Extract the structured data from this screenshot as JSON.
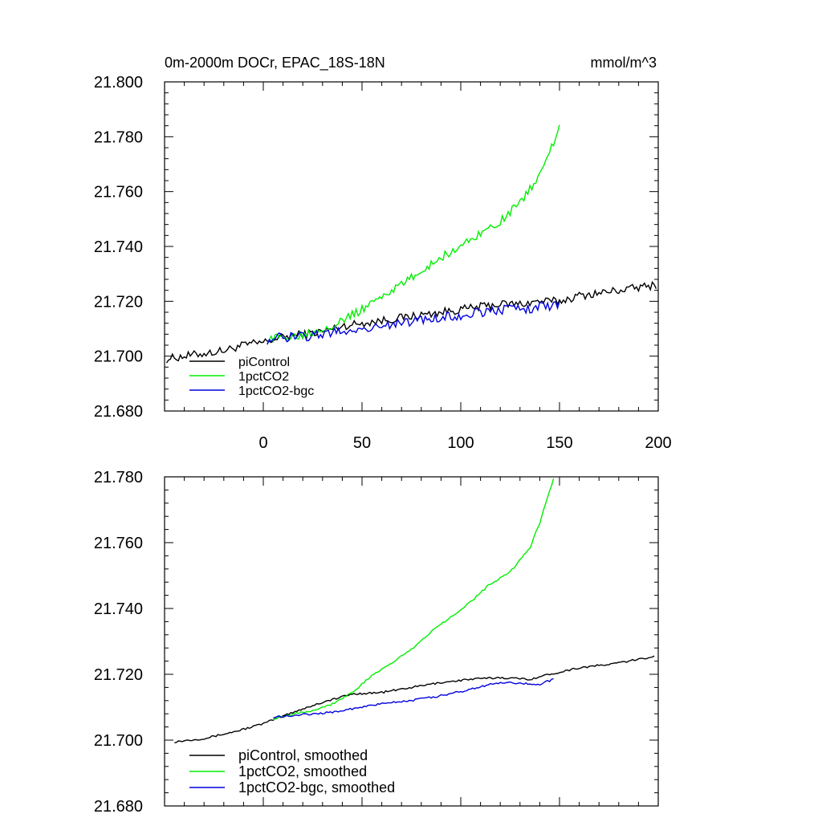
{
  "chart_data": [
    {
      "type": "line",
      "title": "0m-2000m DOCr, EPAC_18S-18N",
      "units": "mmol/m^3",
      "xlim": [
        -50,
        200
      ],
      "ylim": [
        21.68,
        21.8
      ],
      "xticks": [
        0,
        50,
        100,
        150,
        200
      ],
      "xtick_labels": [
        "0",
        "50",
        "100",
        "150",
        "200"
      ],
      "yticks": [
        21.68,
        21.7,
        21.72,
        21.74,
        21.76,
        21.78,
        21.8
      ],
      "ytick_labels": [
        "21.680",
        "21.700",
        "21.720",
        "21.740",
        "21.760",
        "21.780",
        "21.800"
      ],
      "legend_position": "bottom-left",
      "series": [
        {
          "name": "piControl",
          "color": "#000000",
          "x": [
            -49,
            -40,
            -30,
            -20,
            -10,
            0,
            10,
            20,
            30,
            40,
            50,
            60,
            70,
            80,
            90,
            100,
            110,
            120,
            130,
            140,
            150,
            160,
            170,
            180,
            190,
            199
          ],
          "y": [
            21.699,
            21.7,
            21.701,
            21.702,
            21.704,
            21.705,
            21.707,
            21.708,
            21.709,
            21.711,
            21.712,
            21.713,
            21.714,
            21.715,
            21.716,
            21.717,
            21.718,
            21.719,
            21.719,
            21.72,
            21.72,
            21.722,
            21.723,
            21.724,
            21.725,
            21.726
          ],
          "noise": 0.0015
        },
        {
          "name": "1pctCO2",
          "color": "#00ee00",
          "x": [
            2,
            10,
            20,
            30,
            40,
            50,
            60,
            70,
            80,
            90,
            100,
            110,
            120,
            130,
            140,
            150
          ],
          "y": [
            21.706,
            21.707,
            21.708,
            21.71,
            21.713,
            21.717,
            21.722,
            21.726,
            21.731,
            21.736,
            21.74,
            21.745,
            21.749,
            21.756,
            21.766,
            21.783
          ],
          "noise": 0.0015
        },
        {
          "name": "1pctCO2-bgc",
          "color": "#0000dd",
          "x": [
            2,
            10,
            20,
            30,
            40,
            50,
            60,
            70,
            80,
            90,
            100,
            110,
            120,
            130,
            140,
            150
          ],
          "y": [
            21.706,
            21.707,
            21.707,
            21.708,
            21.709,
            21.71,
            21.711,
            21.712,
            21.713,
            21.714,
            21.715,
            21.716,
            21.717,
            21.717,
            21.718,
            21.719
          ],
          "noise": 0.0018
        }
      ]
    },
    {
      "type": "line",
      "xlim": [
        -50,
        200
      ],
      "ylim": [
        21.68,
        21.78
      ],
      "xticks": [
        0,
        50,
        100,
        150,
        200
      ],
      "yticks": [
        21.68,
        21.7,
        21.72,
        21.74,
        21.76,
        21.78
      ],
      "ytick_labels": [
        "21.680",
        "21.700",
        "21.720",
        "21.740",
        "21.760",
        "21.780"
      ],
      "legend_position": "bottom-left",
      "series": [
        {
          "name": "piControl, smoothed",
          "color": "#000000",
          "x": [
            -45,
            -30,
            -15,
            0,
            15,
            30,
            45,
            60,
            75,
            90,
            105,
            120,
            135,
            145,
            160,
            175,
            190,
            198
          ],
          "y": [
            21.6995,
            21.7005,
            21.7025,
            21.705,
            21.7085,
            21.7115,
            21.714,
            21.7145,
            21.716,
            21.7175,
            21.7185,
            21.719,
            21.7185,
            21.72,
            21.722,
            21.723,
            21.7245,
            21.7255
          ],
          "noise": 0.0003
        },
        {
          "name": "1pctCO2, smoothed",
          "color": "#00ee00",
          "x": [
            5,
            15,
            25,
            35,
            45,
            55,
            65,
            75,
            85,
            95,
            105,
            115,
            125,
            135,
            140,
            147
          ],
          "y": [
            21.7065,
            21.708,
            21.709,
            21.711,
            21.7145,
            21.7195,
            21.7235,
            21.7275,
            21.733,
            21.7375,
            21.742,
            21.7475,
            21.751,
            21.7585,
            21.766,
            21.7795
          ],
          "noise": 0.0003
        },
        {
          "name": "1pctCO2-bgc, smoothed",
          "color": "#0000dd",
          "x": [
            5,
            15,
            25,
            35,
            45,
            55,
            65,
            75,
            85,
            95,
            105,
            115,
            125,
            135,
            140,
            147
          ],
          "y": [
            21.707,
            21.7075,
            21.708,
            21.7085,
            21.7095,
            21.7105,
            21.7115,
            21.712,
            21.713,
            21.714,
            21.7155,
            21.717,
            21.7175,
            21.717,
            21.717,
            21.7185
          ],
          "noise": 0.0003
        }
      ]
    }
  ]
}
